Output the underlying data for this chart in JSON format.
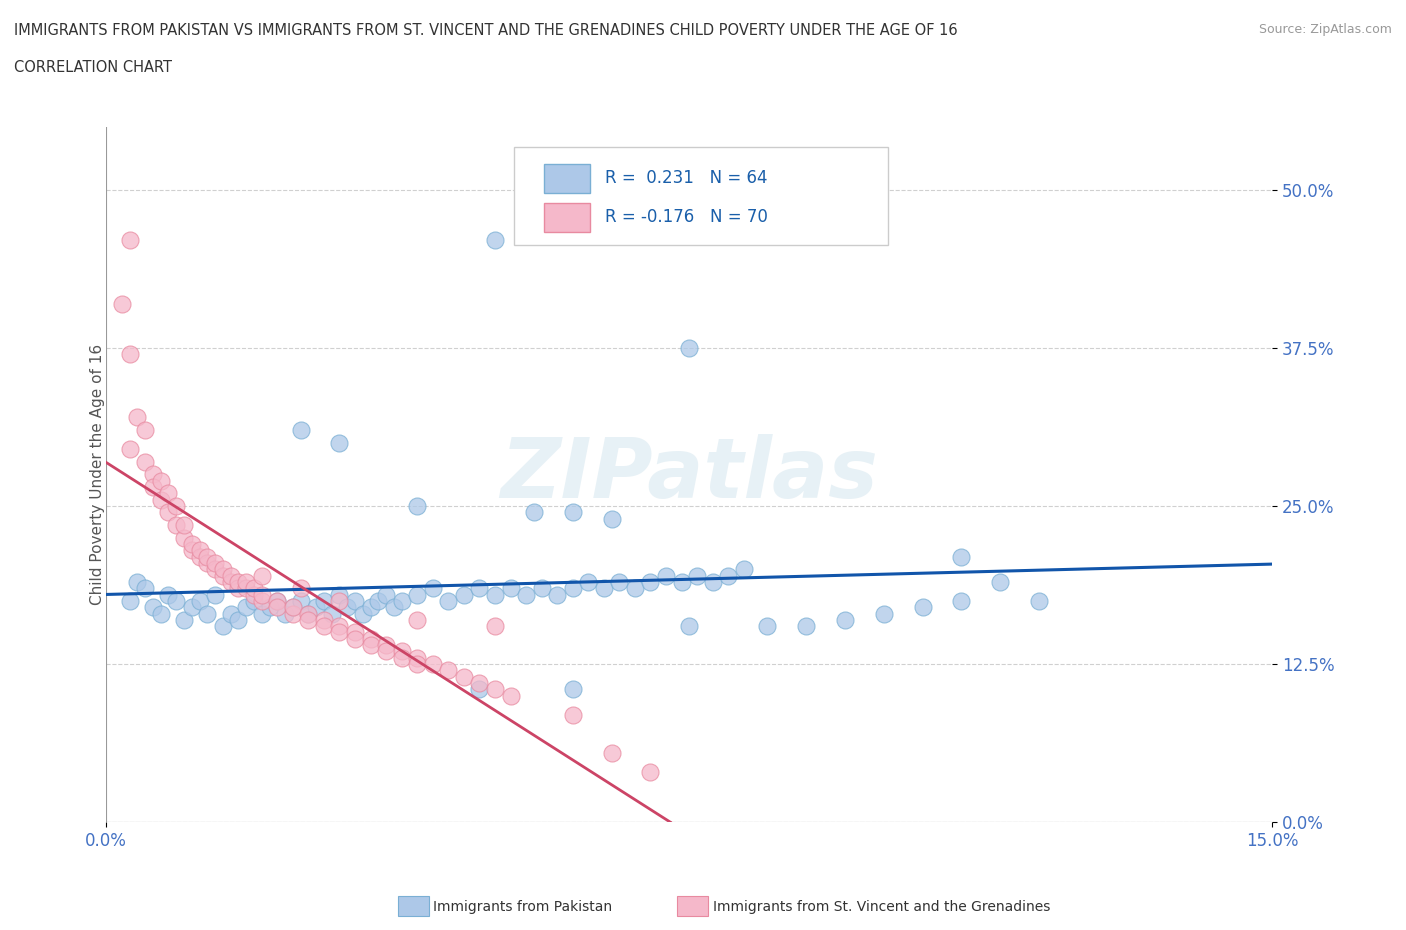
{
  "title_line1": "IMMIGRANTS FROM PAKISTAN VS IMMIGRANTS FROM ST. VINCENT AND THE GRENADINES CHILD POVERTY UNDER THE AGE OF 16",
  "title_line2": "CORRELATION CHART",
  "source_text": "Source: ZipAtlas.com",
  "ylabel": "Child Poverty Under the Age of 16",
  "xlim": [
    0.0,
    0.15
  ],
  "ylim": [
    0.0,
    0.55
  ],
  "ytick_values": [
    0.0,
    0.125,
    0.25,
    0.375,
    0.5
  ],
  "color_pakistan": "#adc8e8",
  "color_pakistan_edge": "#7aafd4",
  "color_svg": "#f5b8ca",
  "color_svg_edge": "#e88aa0",
  "color_pakistan_line": "#1155aa",
  "color_svg_line": "#cc4466",
  "watermark": "ZIPatlas",
  "pakistan_data": [
    [
      0.003,
      0.175
    ],
    [
      0.004,
      0.19
    ],
    [
      0.005,
      0.185
    ],
    [
      0.006,
      0.17
    ],
    [
      0.007,
      0.165
    ],
    [
      0.008,
      0.18
    ],
    [
      0.009,
      0.175
    ],
    [
      0.01,
      0.16
    ],
    [
      0.011,
      0.17
    ],
    [
      0.012,
      0.175
    ],
    [
      0.013,
      0.165
    ],
    [
      0.014,
      0.18
    ],
    [
      0.015,
      0.155
    ],
    [
      0.016,
      0.165
    ],
    [
      0.017,
      0.16
    ],
    [
      0.018,
      0.17
    ],
    [
      0.019,
      0.175
    ],
    [
      0.02,
      0.165
    ],
    [
      0.021,
      0.17
    ],
    [
      0.022,
      0.175
    ],
    [
      0.023,
      0.165
    ],
    [
      0.024,
      0.17
    ],
    [
      0.025,
      0.175
    ],
    [
      0.026,
      0.165
    ],
    [
      0.027,
      0.17
    ],
    [
      0.028,
      0.175
    ],
    [
      0.029,
      0.165
    ],
    [
      0.03,
      0.18
    ],
    [
      0.031,
      0.17
    ],
    [
      0.032,
      0.175
    ],
    [
      0.033,
      0.165
    ],
    [
      0.034,
      0.17
    ],
    [
      0.035,
      0.175
    ],
    [
      0.036,
      0.18
    ],
    [
      0.037,
      0.17
    ],
    [
      0.038,
      0.175
    ],
    [
      0.04,
      0.18
    ],
    [
      0.042,
      0.185
    ],
    [
      0.044,
      0.175
    ],
    [
      0.046,
      0.18
    ],
    [
      0.048,
      0.185
    ],
    [
      0.05,
      0.18
    ],
    [
      0.052,
      0.185
    ],
    [
      0.054,
      0.18
    ],
    [
      0.056,
      0.185
    ],
    [
      0.058,
      0.18
    ],
    [
      0.06,
      0.185
    ],
    [
      0.062,
      0.19
    ],
    [
      0.064,
      0.185
    ],
    [
      0.066,
      0.19
    ],
    [
      0.068,
      0.185
    ],
    [
      0.07,
      0.19
    ],
    [
      0.072,
      0.195
    ],
    [
      0.074,
      0.19
    ],
    [
      0.076,
      0.195
    ],
    [
      0.078,
      0.19
    ],
    [
      0.08,
      0.195
    ],
    [
      0.082,
      0.2
    ],
    [
      0.025,
      0.31
    ],
    [
      0.03,
      0.3
    ],
    [
      0.04,
      0.25
    ],
    [
      0.055,
      0.245
    ],
    [
      0.065,
      0.24
    ],
    [
      0.075,
      0.375
    ],
    [
      0.11,
      0.21
    ],
    [
      0.12,
      0.175
    ],
    [
      0.06,
      0.245
    ],
    [
      0.048,
      0.105
    ],
    [
      0.06,
      0.105
    ],
    [
      0.075,
      0.155
    ],
    [
      0.085,
      0.155
    ],
    [
      0.09,
      0.155
    ],
    [
      0.095,
      0.16
    ],
    [
      0.1,
      0.165
    ],
    [
      0.105,
      0.17
    ],
    [
      0.11,
      0.175
    ],
    [
      0.05,
      0.46
    ],
    [
      0.115,
      0.19
    ]
  ],
  "svg_data": [
    [
      0.002,
      0.41
    ],
    [
      0.003,
      0.37
    ],
    [
      0.003,
      0.295
    ],
    [
      0.004,
      0.32
    ],
    [
      0.005,
      0.285
    ],
    [
      0.005,
      0.31
    ],
    [
      0.006,
      0.275
    ],
    [
      0.006,
      0.265
    ],
    [
      0.007,
      0.255
    ],
    [
      0.007,
      0.27
    ],
    [
      0.008,
      0.245
    ],
    [
      0.008,
      0.26
    ],
    [
      0.009,
      0.235
    ],
    [
      0.009,
      0.25
    ],
    [
      0.01,
      0.225
    ],
    [
      0.01,
      0.235
    ],
    [
      0.011,
      0.215
    ],
    [
      0.011,
      0.22
    ],
    [
      0.012,
      0.21
    ],
    [
      0.012,
      0.215
    ],
    [
      0.013,
      0.205
    ],
    [
      0.013,
      0.21
    ],
    [
      0.014,
      0.2
    ],
    [
      0.014,
      0.205
    ],
    [
      0.015,
      0.195
    ],
    [
      0.015,
      0.2
    ],
    [
      0.016,
      0.19
    ],
    [
      0.016,
      0.195
    ],
    [
      0.017,
      0.185
    ],
    [
      0.017,
      0.19
    ],
    [
      0.018,
      0.185
    ],
    [
      0.018,
      0.19
    ],
    [
      0.019,
      0.18
    ],
    [
      0.019,
      0.185
    ],
    [
      0.02,
      0.175
    ],
    [
      0.02,
      0.18
    ],
    [
      0.022,
      0.175
    ],
    [
      0.022,
      0.17
    ],
    [
      0.024,
      0.165
    ],
    [
      0.024,
      0.17
    ],
    [
      0.026,
      0.165
    ],
    [
      0.026,
      0.16
    ],
    [
      0.028,
      0.16
    ],
    [
      0.028,
      0.155
    ],
    [
      0.03,
      0.155
    ],
    [
      0.03,
      0.15
    ],
    [
      0.032,
      0.15
    ],
    [
      0.032,
      0.145
    ],
    [
      0.034,
      0.145
    ],
    [
      0.034,
      0.14
    ],
    [
      0.036,
      0.14
    ],
    [
      0.036,
      0.135
    ],
    [
      0.038,
      0.135
    ],
    [
      0.038,
      0.13
    ],
    [
      0.04,
      0.13
    ],
    [
      0.04,
      0.125
    ],
    [
      0.042,
      0.125
    ],
    [
      0.044,
      0.12
    ],
    [
      0.046,
      0.115
    ],
    [
      0.048,
      0.11
    ],
    [
      0.05,
      0.105
    ],
    [
      0.052,
      0.1
    ],
    [
      0.02,
      0.195
    ],
    [
      0.025,
      0.185
    ],
    [
      0.03,
      0.175
    ],
    [
      0.04,
      0.16
    ],
    [
      0.05,
      0.155
    ],
    [
      0.06,
      0.085
    ],
    [
      0.065,
      0.055
    ],
    [
      0.07,
      0.04
    ],
    [
      0.003,
      0.46
    ]
  ]
}
